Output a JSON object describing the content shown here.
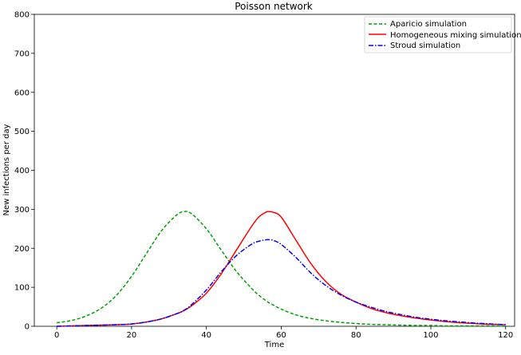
{
  "chart_data": {
    "type": "line",
    "title": "Poisson network",
    "xlabel": "Time",
    "ylabel": "New infections per day",
    "xlim": [
      -6,
      122.4
    ],
    "ylim": [
      0,
      800
    ],
    "xticks": [
      0,
      20,
      40,
      60,
      80,
      100,
      120
    ],
    "yticks": [
      0,
      100,
      200,
      300,
      400,
      500,
      600,
      700,
      800
    ],
    "grid": false,
    "legend_position": "top-right",
    "x": [
      0,
      4,
      8,
      12,
      16,
      20,
      24,
      28,
      32,
      34,
      36,
      40,
      44,
      48,
      52,
      54,
      56,
      57,
      58,
      60,
      64,
      68,
      72,
      76,
      80,
      84,
      88,
      92,
      96,
      100,
      104,
      108,
      112,
      116,
      120
    ],
    "series": [
      {
        "name": "Aparicio simulation",
        "color": "#00a000",
        "dash": "dashed",
        "values": [
          9,
          15,
          27,
          47,
          80,
          128,
          187,
          245,
          285,
          294,
          289,
          250,
          195,
          141,
          98,
          80,
          65,
          59,
          54,
          44,
          29,
          20,
          14,
          10,
          7,
          5,
          4,
          3,
          2,
          2,
          1,
          1,
          1,
          1,
          0
        ]
      },
      {
        "name": "Homogeneous mixing simulation",
        "color": "#ff0000",
        "dash": "solid",
        "values": [
          0,
          1,
          2,
          3,
          4,
          6,
          11,
          19,
          32,
          40,
          52,
          85,
          135,
          195,
          255,
          280,
          293,
          294,
          292,
          280,
          220,
          160,
          114,
          82,
          62,
          46,
          35,
          27,
          21,
          16,
          12,
          9,
          7,
          5,
          4
        ]
      },
      {
        "name": "Stroud simulation",
        "color": "#0000ff",
        "dash": "dashdot",
        "values": [
          0,
          1,
          2,
          3,
          4,
          6,
          11,
          19,
          32,
          41,
          55,
          93,
          140,
          181,
          210,
          218,
          222,
          222,
          220,
          210,
          176,
          136,
          104,
          80,
          62,
          49,
          38,
          30,
          23,
          18,
          14,
          11,
          8,
          6,
          4
        ]
      }
    ]
  }
}
